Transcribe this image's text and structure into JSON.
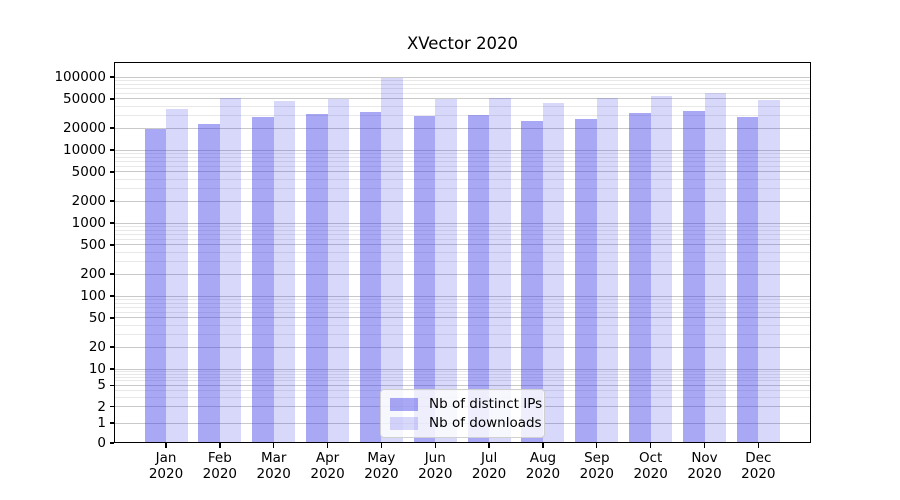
{
  "figure": {
    "background": "#ffffff"
  },
  "chart_data": {
    "type": "bar",
    "title": "XVector 2020",
    "categories": [
      "Jan 2020",
      "Feb 2020",
      "Mar 2020",
      "Apr 2020",
      "May 2020",
      "Jun 2020",
      "Jul 2020",
      "Aug 2020",
      "Sep 2020",
      "Oct 2020",
      "Nov 2020",
      "Dec 2020"
    ],
    "series": [
      {
        "name": "Nb of distinct IPs",
        "color": "rgba(62,62,230,0.45)",
        "values": [
          19500,
          23000,
          28000,
          31000,
          33000,
          29500,
          30500,
          25000,
          27000,
          32000,
          34000,
          28500
        ]
      },
      {
        "name": "Nb of downloads",
        "color": "rgba(62,62,230,0.2)",
        "values": [
          37000,
          51000,
          47000,
          50000,
          96000,
          49500,
          51000,
          44000,
          51000,
          55000,
          61000,
          49000
        ]
      }
    ],
    "xlabel": "",
    "ylabel": "",
    "yscale": "symlog",
    "yticks": [
      0,
      1,
      2,
      5,
      10,
      20,
      50,
      100,
      200,
      500,
      1000,
      2000,
      5000,
      10000,
      20000,
      50000,
      100000
    ],
    "ylim": [
      0,
      160000
    ],
    "grid": {
      "axis": "y",
      "which": "both",
      "major_color": "#c9c9c9",
      "minor_color": "#e8e8e8"
    },
    "legend_position": "lower center"
  },
  "colors": {
    "bar_distinct_ips_solid": "#a8a8f3",
    "bar_downloads_solid": "#d8d8f8",
    "spine": "#000000",
    "grid_major": "#c9c9c9",
    "grid_minor": "#e8e8e8",
    "text": "#000000"
  }
}
